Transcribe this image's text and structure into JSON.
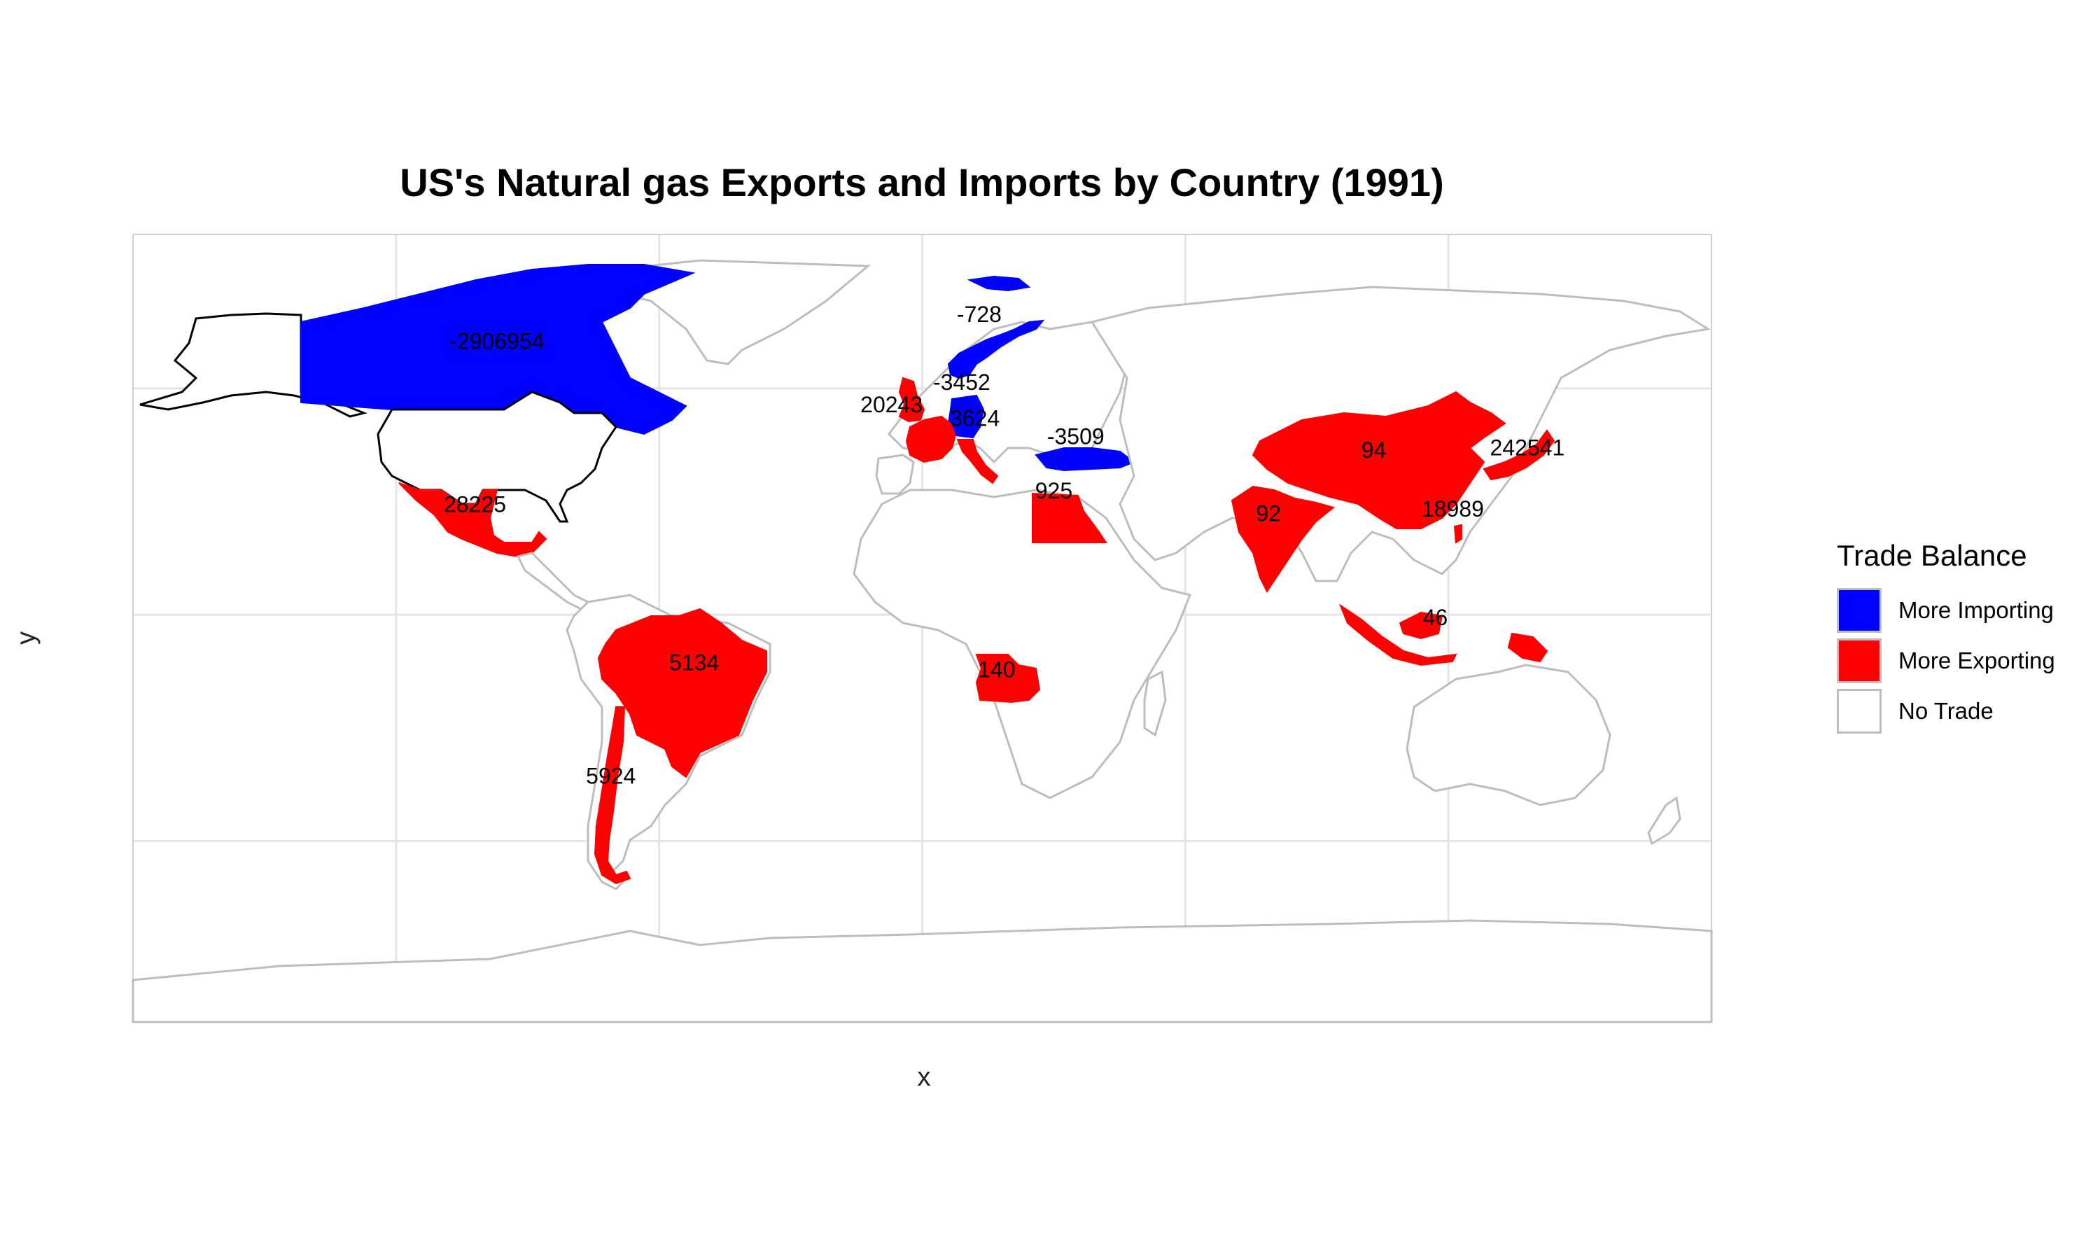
{
  "title": "US's Natural gas Exports and Imports by Country (1991)",
  "x_axis_label": "x",
  "y_axis_label": "y",
  "legend": {
    "title": "Trade Balance",
    "items": [
      {
        "label": "More Importing",
        "color": "#0000FF"
      },
      {
        "label": "More Exporting",
        "color": "#FF0000"
      },
      {
        "label": "No Trade",
        "color": "#FFFFFF"
      }
    ]
  },
  "colors": {
    "importing": "#0000FF",
    "exporting": "#FF0000",
    "no_trade": "#FFFFFF",
    "border": "#BDBDBD",
    "grid": "#E5E5E5",
    "us_outline": "#000000"
  },
  "chart_data": {
    "type": "choropleth",
    "projection": "equirectangular",
    "lon_range": [
      -180,
      180
    ],
    "lat_range": [
      -90,
      84
    ],
    "graticule_lon": [
      -120,
      -60,
      0,
      60,
      120
    ],
    "graticule_lat": [
      -50,
      0,
      50
    ],
    "reporter": "United States",
    "regions": [
      {
        "country": "Canada",
        "value": -2906954,
        "label": "-2906954",
        "category": "More Importing",
        "lon": -97,
        "lat": 60
      },
      {
        "country": "Norway",
        "value": -728,
        "label": "-728",
        "category": "More Importing",
        "lon": 13,
        "lat": 66
      },
      {
        "country": "Germany",
        "value": -3452,
        "label": "-3452",
        "category": "More Importing",
        "lon": 9,
        "lat": 51
      },
      {
        "country": "Turkey",
        "value": -3509,
        "label": "-3509",
        "category": "More Importing",
        "lon": 35,
        "lat": 39
      },
      {
        "country": "France",
        "value": 20243,
        "label": "20243",
        "category": "More Exporting",
        "lon": -7,
        "lat": 46
      },
      {
        "country": "Italy",
        "value": 3624,
        "label": "3624",
        "category": "More Exporting",
        "lon": 12,
        "lat": 43
      },
      {
        "country": "United Kingdom",
        "value": null,
        "label": "",
        "category": "More Exporting",
        "lon": -2,
        "lat": 54
      },
      {
        "country": "Mexico",
        "value": 28225,
        "label": "28225",
        "category": "More Exporting",
        "lon": -102,
        "lat": 24
      },
      {
        "country": "Brazil",
        "value": 5134,
        "label": "5134",
        "category": "More Exporting",
        "lon": -52,
        "lat": -11
      },
      {
        "country": "Chile",
        "value": 5924,
        "label": "5924",
        "category": "More Exporting",
        "lon": -71,
        "lat": -36
      },
      {
        "country": "Egypt",
        "value": 925,
        "label": "925",
        "category": "More Exporting",
        "lon": 30,
        "lat": 27
      },
      {
        "country": "Angola",
        "value": 140,
        "label": "140",
        "category": "More Exporting",
        "lon": 17,
        "lat": -12.5
      },
      {
        "country": "India",
        "value": 92,
        "label": "92",
        "category": "More Exporting",
        "lon": 79,
        "lat": 22
      },
      {
        "country": "China",
        "value": 94,
        "label": "94",
        "category": "More Exporting",
        "lon": 103,
        "lat": 36
      },
      {
        "country": "Taiwan",
        "value": 18989,
        "label": "18989",
        "category": "More Exporting",
        "lon": 121,
        "lat": 23
      },
      {
        "country": "Japan",
        "value": 242541,
        "label": "242541",
        "category": "More Exporting",
        "lon": 138,
        "lat": 36.5
      },
      {
        "country": "Indonesia",
        "value": 46,
        "label": "46",
        "category": "More Exporting",
        "lon": 117,
        "lat": -1
      },
      {
        "country": "United States",
        "value": null,
        "label": "",
        "category": "No Trade",
        "lon": -98,
        "lat": 39
      }
    ]
  }
}
